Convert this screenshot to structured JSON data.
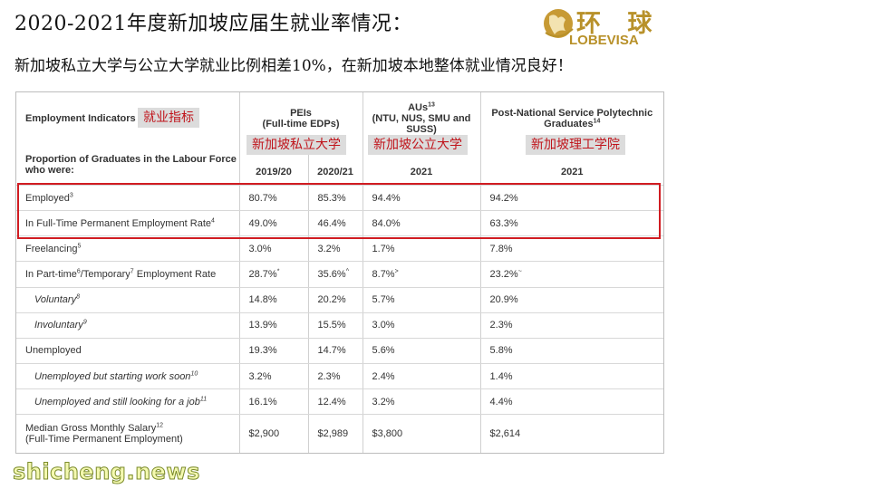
{
  "header": {
    "title": "2020-2021年度新加坡应届生就业率情况：",
    "subtitle": "新加坡私立大学与公立大学就业比例相差10%，在新加坡本地整体就业情况良好！",
    "logo_cn": "环 球",
    "logo_en": "LOBEVISA"
  },
  "labels": {
    "indicators_cn": "就业指标",
    "peis_cn": "新加坡私立大学",
    "aus_cn": "新加坡公立大学",
    "poly_cn": "新加坡理工学院"
  },
  "table": {
    "col_indicators": "Employment Indicators",
    "col_peis_1": "PEIs",
    "col_peis_2": "(Full-time EDPs)",
    "col_aus_1": "AUs",
    "col_aus_sup": "13",
    "col_aus_2": "(NTU, NUS, SMU and",
    "col_aus_3": "SUSS)",
    "col_poly_1": "Post-National Service Polytechnic",
    "col_poly_2": "Graduates",
    "col_poly_sup": "14",
    "sub_label_1": "Proportion of Graduates in the Labour Force",
    "sub_label_2": "who were:",
    "year_peis_a": "2019/20",
    "year_peis_b": "2020/21",
    "year_aus": "2021",
    "year_poly": "2021",
    "rows": [
      {
        "label": "Employed",
        "sup": "3",
        "v1": "80.7%",
        "v2": "85.3%",
        "v3": "94.4%",
        "v4": "94.2%"
      },
      {
        "label": "In Full-Time Permanent Employment Rate",
        "sup": "4",
        "v1": "49.0%",
        "v2": "46.4%",
        "v3": "84.0%",
        "v4": "63.3%"
      },
      {
        "label": "Freelancing",
        "sup": "5",
        "v1": "3.0%",
        "v2": "3.2%",
        "v3": "1.7%",
        "v4": "7.8%"
      },
      {
        "label_a": "In Part-time",
        "sup_a": "6",
        "label_b": "/Temporary",
        "sup_b": "7",
        "label_c": " Employment Rate",
        "v1": "28.7%",
        "v1s": "*",
        "v2": "35.6%",
        "v2s": "^",
        "v3": "8.7%",
        "v3s": ">",
        "v4": "23.2%",
        "v4s": "~"
      },
      {
        "label": "Voluntary",
        "sup": "8",
        "v1": "14.8%",
        "v2": "20.2%",
        "v3": "5.7%",
        "v4": "20.9%"
      },
      {
        "label": "Involuntary",
        "sup": "9",
        "v1": "13.9%",
        "v2": "15.5%",
        "v3": "3.0%",
        "v4": "2.3%"
      },
      {
        "label": "Unemployed",
        "v1": "19.3%",
        "v2": "14.7%",
        "v3": "5.6%",
        "v4": "5.8%"
      },
      {
        "label": "Unemployed but starting work soon",
        "sup": "10",
        "v1": "3.2%",
        "v2": "2.3%",
        "v3": "2.4%",
        "v4": "1.4%"
      },
      {
        "label": "Unemployed and still looking for a job",
        "sup": "11",
        "v1": "16.1%",
        "v2": "12.4%",
        "v3": "3.2%",
        "v4": "4.4%"
      },
      {
        "label_1": "Median Gross Monthly Salary",
        "sup": "12",
        "label_2": "(Full-Time Permanent Employment)",
        "v1": "$2,900",
        "v2": "$2,989",
        "v3": "$3,800",
        "v4": "$2,614"
      }
    ]
  },
  "watermark": "shicheng.news",
  "colors": {
    "accent_red": "#d01c22",
    "logo_gold": "#b8912a"
  }
}
